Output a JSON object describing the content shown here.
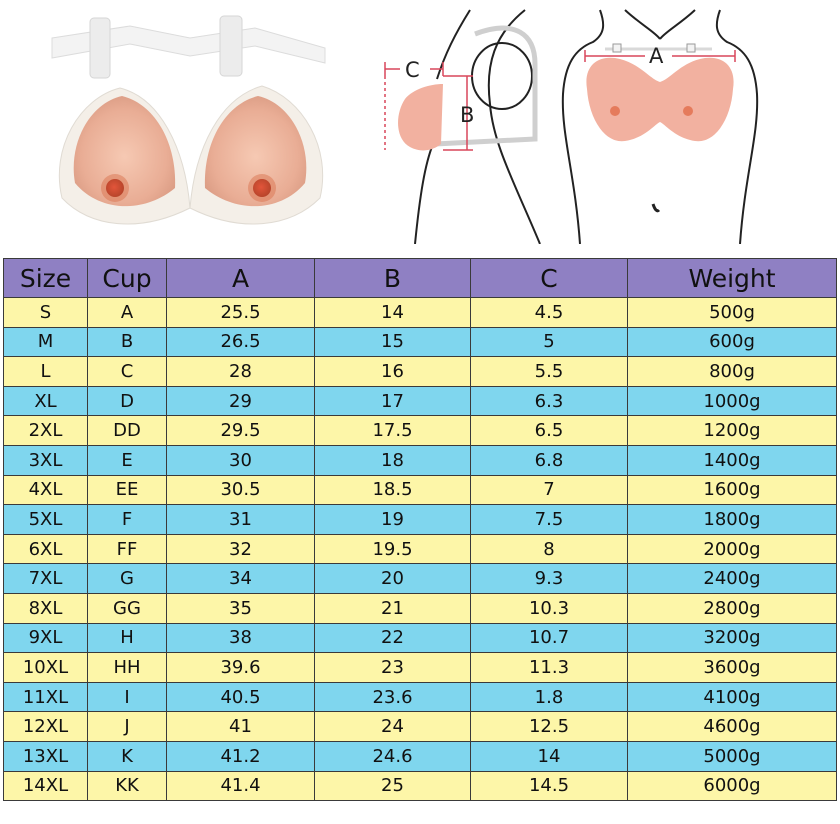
{
  "diagram": {
    "labels": {
      "a": "A",
      "b": "B",
      "c": "C"
    },
    "icons": [
      "breast-form-product-icon",
      "side-profile-body-icon",
      "front-torso-body-icon"
    ],
    "colors": {
      "header": "#8f80c3",
      "row_yellow": "#fdf6a8",
      "row_blue": "#7fd6ee",
      "skin": "#f2b1a0",
      "measure_line": "#d9465a"
    }
  },
  "table": {
    "headers": [
      "Size",
      "Cup",
      "A",
      "B",
      "C",
      "Weight"
    ],
    "rows": [
      [
        "S",
        "A",
        "25.5",
        "14",
        "4.5",
        "500g"
      ],
      [
        "M",
        "B",
        "26.5",
        "15",
        "5",
        "600g"
      ],
      [
        "L",
        "C",
        "28",
        "16",
        "5.5",
        "800g"
      ],
      [
        "XL",
        "D",
        "29",
        "17",
        "6.3",
        "1000g"
      ],
      [
        "2XL",
        "DD",
        "29.5",
        "17.5",
        "6.5",
        "1200g"
      ],
      [
        "3XL",
        "E",
        "30",
        "18",
        "6.8",
        "1400g"
      ],
      [
        "4XL",
        "EE",
        "30.5",
        "18.5",
        "7",
        "1600g"
      ],
      [
        "5XL",
        "F",
        "31",
        "19",
        "7.5",
        "1800g"
      ],
      [
        "6XL",
        "FF",
        "32",
        "19.5",
        "8",
        "2000g"
      ],
      [
        "7XL",
        "G",
        "34",
        "20",
        "9.3",
        "2400g"
      ],
      [
        "8XL",
        "GG",
        "35",
        "21",
        "10.3",
        "2800g"
      ],
      [
        "9XL",
        "H",
        "38",
        "22",
        "10.7",
        "3200g"
      ],
      [
        "10XL",
        "HH",
        "39.6",
        "23",
        "11.3",
        "3600g"
      ],
      [
        "11XL",
        "I",
        "40.5",
        "23.6",
        "1.8",
        "4100g"
      ],
      [
        "12XL",
        "J",
        "41",
        "24",
        "12.5",
        "4600g"
      ],
      [
        "13XL",
        "K",
        "41.2",
        "24.6",
        "14",
        "5000g"
      ],
      [
        "14XL",
        "KK",
        "41.4",
        "25",
        "14.5",
        "6000g"
      ]
    ]
  }
}
